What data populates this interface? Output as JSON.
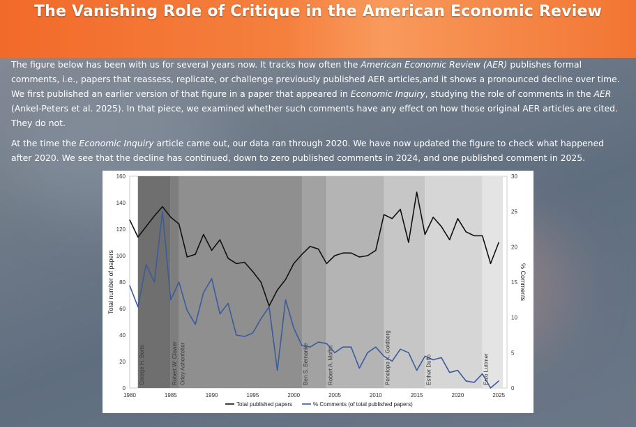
{
  "page": {
    "title": "The Vanishing Role of Critique in the American Economic Review",
    "p1": {
      "a": "The figure below has been with us for several years now. It tracks how often the ",
      "b": "American Economic Review (AER)",
      "c": " publishes formal comments, i.e., papers that reassess, replicate, or challenge previously published AER articles,and it shows a pronounced decline over time. We first published an earlier version of that figure in a paper that appeared in ",
      "d": "Economic Inquiry",
      "e": ", studying the role of comments in the ",
      "f": "AER",
      "g": " (Ankel-Peters et al. 2025). In that piece, we examined whether such comments have any effect on how those original AER articles are cited. They do not."
    },
    "p2": {
      "a": "At the time the ",
      "b": "Economic Inquiry",
      "c": " article came out, our data ran through 2020. We have now updated the figure to check what happened after 2020. We see that the decline has continued, down to zero published comments in 2024, and one published comment in 2025."
    }
  },
  "colors": {
    "papers_line": "#111111",
    "comments_line": "#3b5b9b",
    "era_shades": [
      "#6f6f6f",
      "#7e7e7e",
      "#8f8f8f",
      "#a2a2a2",
      "#b4b4b4",
      "#c6c6c6",
      "#d6d6d6",
      "#e4e4e4"
    ]
  },
  "chart_data": {
    "type": "line",
    "x": [
      1980,
      1981,
      1982,
      1983,
      1984,
      1985,
      1986,
      1987,
      1988,
      1989,
      1990,
      1991,
      1992,
      1993,
      1994,
      1995,
      1996,
      1997,
      1998,
      1999,
      2000,
      2001,
      2002,
      2003,
      2004,
      2005,
      2006,
      2007,
      2008,
      2009,
      2010,
      2011,
      2012,
      2013,
      2014,
      2015,
      2016,
      2017,
      2018,
      2019,
      2020,
      2021,
      2022,
      2023,
      2024,
      2025
    ],
    "series": [
      {
        "name": "Total published papers",
        "axis": "left",
        "values": [
          127,
          114,
          122,
          130,
          137,
          129,
          124,
          99,
          101,
          116,
          104,
          112,
          98,
          94,
          95,
          88,
          80,
          62,
          74,
          82,
          94,
          101,
          107,
          105,
          94,
          100,
          102,
          102,
          99,
          100,
          104,
          131,
          128,
          135,
          110,
          148,
          116,
          129,
          122,
          112,
          128,
          118,
          115,
          115,
          94,
          110
        ]
      },
      {
        "name": "% Comments (of total published papers)",
        "axis": "right",
        "values": [
          14.5,
          11.5,
          17.5,
          15,
          25,
          12.5,
          15,
          11,
          9,
          13.5,
          15.5,
          10.5,
          12,
          7.5,
          7.3,
          7.8,
          9.8,
          11.5,
          2.5,
          12.5,
          8.5,
          6,
          5.8,
          6.5,
          6.3,
          5,
          5.8,
          5.8,
          2.8,
          5,
          5.8,
          4.5,
          3.8,
          5.5,
          5,
          2.5,
          4.5,
          4,
          4.3,
          2.2,
          2.5,
          1,
          0.8,
          2,
          0,
          1
        ]
      }
    ],
    "eras": [
      {
        "start": 1981,
        "end": 1985,
        "label": "George H. Borts"
      },
      {
        "start": 1985,
        "end": 1986,
        "label": "Robert W. Clower"
      },
      {
        "start": 1986,
        "end": 2001,
        "label": "Orley Ashenfelter"
      },
      {
        "start": 2001,
        "end": 2004,
        "label": "Ben S. Bernanke"
      },
      {
        "start": 2004,
        "end": 2011,
        "label": "Robert A. Moffitt"
      },
      {
        "start": 2011,
        "end": 2016,
        "label": "Penelope K. Goldberg"
      },
      {
        "start": 2016,
        "end": 2023,
        "label": "Esther Duflo"
      },
      {
        "start": 2023,
        "end": 2025.5,
        "label": "Erzo Luttmer"
      }
    ],
    "ylabel": "Total number of papers",
    "y2label": "% Comments",
    "xlim": [
      1980,
      2026
    ],
    "ylim": [
      0,
      160
    ],
    "y2lim": [
      0,
      30
    ],
    "xticks": [
      "1980",
      "1985",
      "1990",
      "1995",
      "2000",
      "2005",
      "2010",
      "2015",
      "2020",
      "2025"
    ],
    "yticks": [
      "0",
      "20",
      "40",
      "60",
      "80",
      "100",
      "120",
      "140",
      "160"
    ],
    "y2ticks": [
      "0",
      "5",
      "10",
      "15",
      "20",
      "25",
      "30"
    ],
    "legend": [
      "Total published papers",
      "% Comments (of total published papers)"
    ]
  }
}
